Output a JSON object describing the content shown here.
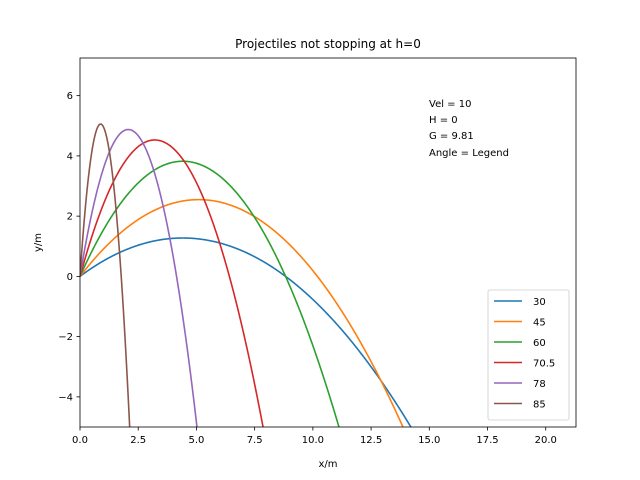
{
  "chart_data": {
    "type": "line",
    "title": "Projectiles not stopping at h=0",
    "xlabel": "x/m",
    "ylabel": "y/m",
    "xlim": [
      0,
      21.3
    ],
    "ylim": [
      -5,
      7.25
    ],
    "xticks": [
      0.0,
      2.5,
      5.0,
      7.5,
      10.0,
      12.5,
      15.0,
      17.5,
      20.0
    ],
    "xtick_labels": [
      "0.0",
      "2.5",
      "5.0",
      "7.5",
      "10.0",
      "12.5",
      "15.0",
      "17.5",
      "20.0"
    ],
    "yticks": [
      -4,
      -2,
      0,
      2,
      4,
      6
    ],
    "ytick_labels": [
      "−4",
      "−2",
      "0",
      "2",
      "4",
      "6"
    ],
    "grid": false,
    "legend_position": "lower-right",
    "velocity": 10,
    "gravity": 9.81,
    "x_max": 20.3,
    "annotation": [
      "Vel = 10",
      "H = 0",
      "G = 9.81",
      "Angle = Legend"
    ],
    "series": [
      {
        "name": "30",
        "angle_deg": 30,
        "color": "#1f77b4"
      },
      {
        "name": "45",
        "angle_deg": 45,
        "color": "#ff7f0e"
      },
      {
        "name": "60",
        "angle_deg": 60,
        "color": "#2ca02c"
      },
      {
        "name": "70.5",
        "angle_deg": 70.5,
        "color": "#d62728"
      },
      {
        "name": "78",
        "angle_deg": 78,
        "color": "#9467bd"
      },
      {
        "name": "85",
        "angle_deg": 85,
        "color": "#8c564b"
      }
    ]
  }
}
